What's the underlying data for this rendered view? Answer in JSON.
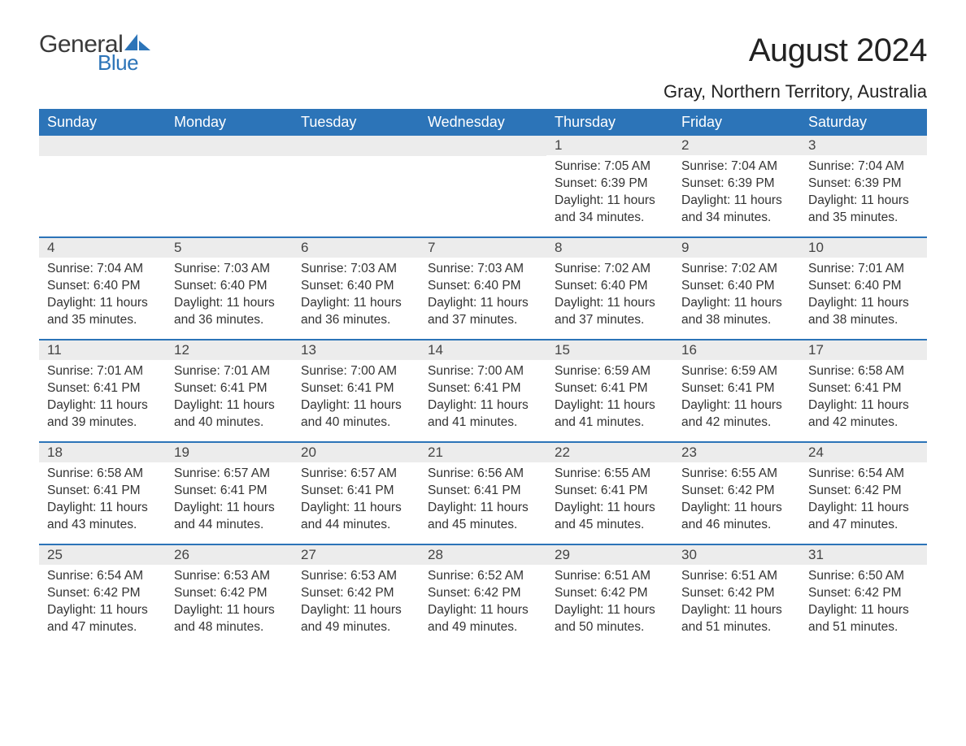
{
  "brand": {
    "general": "General",
    "blue": "Blue",
    "shape_color": "#2c74b8"
  },
  "title": "August 2024",
  "location": "Gray, Northern Territory, Australia",
  "colors": {
    "header_bg": "#2c74b8",
    "header_text": "#ffffff",
    "daynum_bg": "#ececec",
    "text": "#333333",
    "page_bg": "#ffffff"
  },
  "weekdays": [
    "Sunday",
    "Monday",
    "Tuesday",
    "Wednesday",
    "Thursday",
    "Friday",
    "Saturday"
  ],
  "weeks": [
    [
      null,
      null,
      null,
      null,
      {
        "n": "1",
        "sunrise": "7:05 AM",
        "sunset": "6:39 PM",
        "daylight": "11 hours and 34 minutes."
      },
      {
        "n": "2",
        "sunrise": "7:04 AM",
        "sunset": "6:39 PM",
        "daylight": "11 hours and 34 minutes."
      },
      {
        "n": "3",
        "sunrise": "7:04 AM",
        "sunset": "6:39 PM",
        "daylight": "11 hours and 35 minutes."
      }
    ],
    [
      {
        "n": "4",
        "sunrise": "7:04 AM",
        "sunset": "6:40 PM",
        "daylight": "11 hours and 35 minutes."
      },
      {
        "n": "5",
        "sunrise": "7:03 AM",
        "sunset": "6:40 PM",
        "daylight": "11 hours and 36 minutes."
      },
      {
        "n": "6",
        "sunrise": "7:03 AM",
        "sunset": "6:40 PM",
        "daylight": "11 hours and 36 minutes."
      },
      {
        "n": "7",
        "sunrise": "7:03 AM",
        "sunset": "6:40 PM",
        "daylight": "11 hours and 37 minutes."
      },
      {
        "n": "8",
        "sunrise": "7:02 AM",
        "sunset": "6:40 PM",
        "daylight": "11 hours and 37 minutes."
      },
      {
        "n": "9",
        "sunrise": "7:02 AM",
        "sunset": "6:40 PM",
        "daylight": "11 hours and 38 minutes."
      },
      {
        "n": "10",
        "sunrise": "7:01 AM",
        "sunset": "6:40 PM",
        "daylight": "11 hours and 38 minutes."
      }
    ],
    [
      {
        "n": "11",
        "sunrise": "7:01 AM",
        "sunset": "6:41 PM",
        "daylight": "11 hours and 39 minutes."
      },
      {
        "n": "12",
        "sunrise": "7:01 AM",
        "sunset": "6:41 PM",
        "daylight": "11 hours and 40 minutes."
      },
      {
        "n": "13",
        "sunrise": "7:00 AM",
        "sunset": "6:41 PM",
        "daylight": "11 hours and 40 minutes."
      },
      {
        "n": "14",
        "sunrise": "7:00 AM",
        "sunset": "6:41 PM",
        "daylight": "11 hours and 41 minutes."
      },
      {
        "n": "15",
        "sunrise": "6:59 AM",
        "sunset": "6:41 PM",
        "daylight": "11 hours and 41 minutes."
      },
      {
        "n": "16",
        "sunrise": "6:59 AM",
        "sunset": "6:41 PM",
        "daylight": "11 hours and 42 minutes."
      },
      {
        "n": "17",
        "sunrise": "6:58 AM",
        "sunset": "6:41 PM",
        "daylight": "11 hours and 42 minutes."
      }
    ],
    [
      {
        "n": "18",
        "sunrise": "6:58 AM",
        "sunset": "6:41 PM",
        "daylight": "11 hours and 43 minutes."
      },
      {
        "n": "19",
        "sunrise": "6:57 AM",
        "sunset": "6:41 PM",
        "daylight": "11 hours and 44 minutes."
      },
      {
        "n": "20",
        "sunrise": "6:57 AM",
        "sunset": "6:41 PM",
        "daylight": "11 hours and 44 minutes."
      },
      {
        "n": "21",
        "sunrise": "6:56 AM",
        "sunset": "6:41 PM",
        "daylight": "11 hours and 45 minutes."
      },
      {
        "n": "22",
        "sunrise": "6:55 AM",
        "sunset": "6:41 PM",
        "daylight": "11 hours and 45 minutes."
      },
      {
        "n": "23",
        "sunrise": "6:55 AM",
        "sunset": "6:42 PM",
        "daylight": "11 hours and 46 minutes."
      },
      {
        "n": "24",
        "sunrise": "6:54 AM",
        "sunset": "6:42 PM",
        "daylight": "11 hours and 47 minutes."
      }
    ],
    [
      {
        "n": "25",
        "sunrise": "6:54 AM",
        "sunset": "6:42 PM",
        "daylight": "11 hours and 47 minutes."
      },
      {
        "n": "26",
        "sunrise": "6:53 AM",
        "sunset": "6:42 PM",
        "daylight": "11 hours and 48 minutes."
      },
      {
        "n": "27",
        "sunrise": "6:53 AM",
        "sunset": "6:42 PM",
        "daylight": "11 hours and 49 minutes."
      },
      {
        "n": "28",
        "sunrise": "6:52 AM",
        "sunset": "6:42 PM",
        "daylight": "11 hours and 49 minutes."
      },
      {
        "n": "29",
        "sunrise": "6:51 AM",
        "sunset": "6:42 PM",
        "daylight": "11 hours and 50 minutes."
      },
      {
        "n": "30",
        "sunrise": "6:51 AM",
        "sunset": "6:42 PM",
        "daylight": "11 hours and 51 minutes."
      },
      {
        "n": "31",
        "sunrise": "6:50 AM",
        "sunset": "6:42 PM",
        "daylight": "11 hours and 51 minutes."
      }
    ]
  ],
  "labels": {
    "sunrise": "Sunrise: ",
    "sunset": "Sunset: ",
    "daylight": "Daylight: "
  }
}
